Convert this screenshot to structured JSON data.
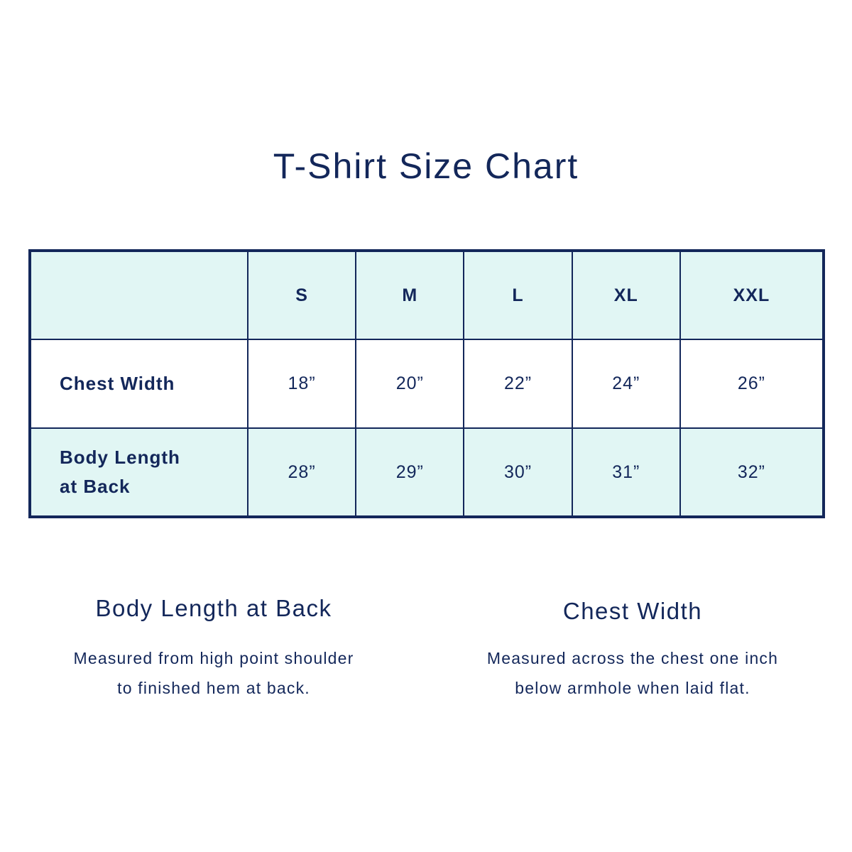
{
  "title": "T-Shirt Size Chart",
  "colors": {
    "navy": "#13275a",
    "shade": "#e1f6f4"
  },
  "table": {
    "corner": "",
    "sizes": [
      "S",
      "M",
      "L",
      "XL",
      "XXL"
    ],
    "rows": [
      {
        "label": "Chest Width",
        "values": [
          "18”",
          "20”",
          "22”",
          "24”",
          "26”"
        ]
      },
      {
        "label_line1": "Body Length",
        "label_line2": "at Back",
        "values": [
          "28”",
          "29”",
          "30”",
          "31”",
          "32”"
        ]
      }
    ]
  },
  "notes": [
    {
      "heading": "Body Length at Back",
      "line1": "Measured from high point shoulder",
      "line2": "to finished hem at back."
    },
    {
      "heading": "Chest Width",
      "line1": "Measured across the chest one inch",
      "line2": "below armhole when laid flat."
    }
  ]
}
